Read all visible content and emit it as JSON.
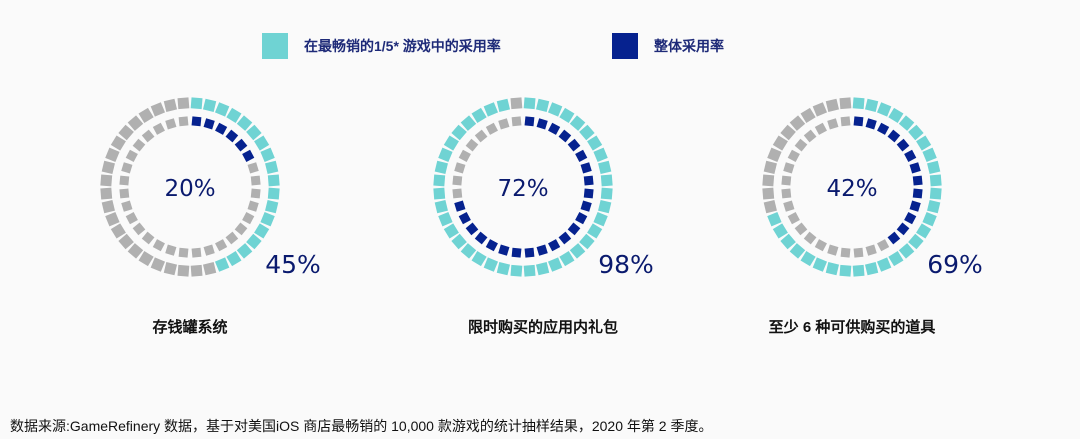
{
  "chart_data": {
    "type": "segmented-donut",
    "legend": [
      {
        "label": "在最畅销的1/5* 游戏中的采用率",
        "color": "#6fd3d3"
      },
      {
        "label": "整体采用率",
        "color": "#06228f"
      }
    ],
    "charts": [
      {
        "category": "存钱罐系统",
        "top_fifth": 45,
        "overall": 20,
        "top_fifth_label": "45%",
        "overall_label": "20%"
      },
      {
        "category": "限时购买的应用内礼包",
        "top_fifth": 98,
        "overall": 72,
        "top_fifth_label": "98%",
        "overall_label": "72%"
      },
      {
        "category": "至少 6 种可供购买的道具",
        "top_fifth": 69,
        "overall": 42,
        "top_fifth_label": "69%",
        "overall_label": "42%"
      }
    ],
    "remainder_color": "#b0b0b0"
  },
  "footer": "数据来源:GameRefinery 数据，基于对美国iOS 商店最畅销的 10,000 款游戏的统计抽样结果，2020 年第 2 季度。"
}
